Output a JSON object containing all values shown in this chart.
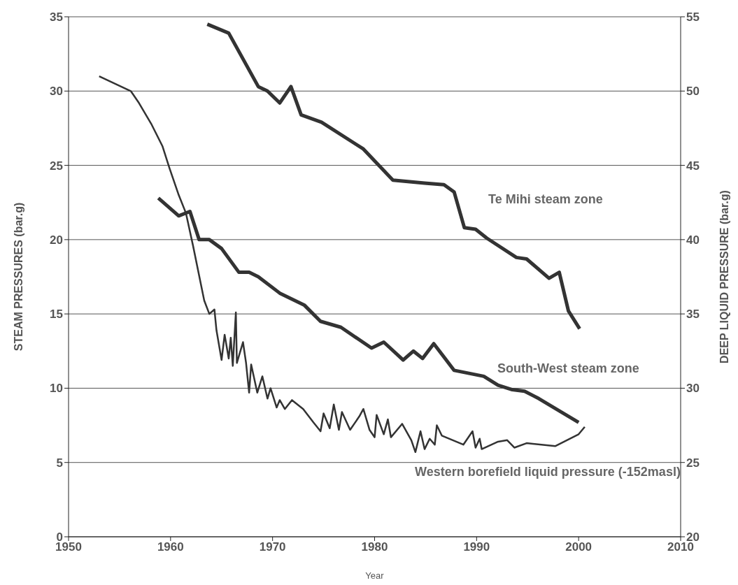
{
  "chart_data": {
    "type": "line",
    "xlabel": "Year",
    "ylabel": "STEAM PRESSURES (bar.g)",
    "y2label": "DEEP LIQUID PRESSURE (bar.g)",
    "xlim": [
      1950,
      2010
    ],
    "xticks": [
      1950,
      1960,
      1970,
      1980,
      1990,
      2000,
      2010
    ],
    "ylim": [
      0,
      35
    ],
    "yticks": [
      0,
      5,
      10,
      15,
      20,
      25,
      30,
      35
    ],
    "y2lim": [
      20,
      55
    ],
    "y2ticks": [
      20,
      25,
      30,
      35,
      40,
      45,
      50,
      55
    ],
    "grid": "y",
    "marker": "none",
    "line_style": "solid",
    "series": [
      {
        "name": "Te Mihi steam zone",
        "color": "#333333",
        "x": [
          1963.6,
          1965.7,
          1968.6,
          1969.5,
          1970.7,
          1971.8,
          1972.8,
          1974.8,
          1978.9,
          1981.8,
          1984.9,
          1986.8,
          1987.8,
          1988.8,
          1989.9,
          1991.0,
          1993.9,
          1994.9,
          1997.1,
          1998.1,
          1999.0,
          2000.1
        ],
        "values": [
          34.5,
          33.9,
          30.3,
          30.0,
          29.2,
          30.3,
          28.4,
          27.9,
          26.1,
          24.0,
          23.8,
          23.7,
          23.2,
          20.8,
          20.7,
          20.1,
          18.8,
          18.7,
          17.4,
          17.8,
          15.2,
          14.0
        ]
      },
      {
        "name": "South-West steam zone",
        "color": "#333333",
        "x": [
          1958.8,
          1960.8,
          1961.9,
          1962.8,
          1963.8,
          1965.0,
          1966.7,
          1967.7,
          1968.6,
          1970.7,
          1973.1,
          1974.7,
          1976.7,
          1979.7,
          1980.9,
          1982.8,
          1983.8,
          1984.7,
          1985.8,
          1987.8,
          1990.7,
          1992.1,
          1993.5,
          1994.7,
          1996.1,
          2000.0
        ],
        "values": [
          22.8,
          21.6,
          21.9,
          20.0,
          20.0,
          19.4,
          17.8,
          17.8,
          17.5,
          16.4,
          15.6,
          14.5,
          14.1,
          12.7,
          13.1,
          11.9,
          12.5,
          12.0,
          13.0,
          11.2,
          10.8,
          10.2,
          9.9,
          9.8,
          9.3,
          7.7
        ]
      },
      {
        "name": "Western borefield liquid pressure (-152masl)",
        "color": "#333333",
        "axis": "y2",
        "x": [
          1953.0,
          1956.1,
          1956.9,
          1958.1,
          1959.2,
          1959.9,
          1960.8,
          1961.5,
          1962.2,
          1963.3,
          1963.8,
          1964.3,
          1964.5,
          1965.0,
          1965.3,
          1965.7,
          1965.9,
          1966.1,
          1966.4,
          1966.5,
          1967.1,
          1967.4,
          1967.7,
          1967.9,
          1968.5,
          1969.0,
          1969.5,
          1969.8,
          1970.4,
          1970.7,
          1971.2,
          1971.9,
          1973.0,
          1974.0,
          1974.7,
          1975.0,
          1975.6,
          1976.0,
          1976.5,
          1976.8,
          1977.6,
          1978.5,
          1978.9,
          1979.5,
          1980.0,
          1980.2,
          1980.9,
          1981.3,
          1981.6,
          1982.7,
          1983.6,
          1984.0,
          1984.5,
          1984.9,
          1985.4,
          1985.9,
          1986.1,
          1986.6,
          1988.7,
          1989.6,
          1989.9,
          1990.3,
          1990.5,
          1992.1,
          1993.0,
          1993.7,
          1994.9,
          1997.7,
          2000.0,
          2000.6
        ],
        "values": [
          51.0,
          50.0,
          49.2,
          47.8,
          46.3,
          44.8,
          43.0,
          41.8,
          39.6,
          35.9,
          35.0,
          35.3,
          33.9,
          31.9,
          33.6,
          32.0,
          33.4,
          31.5,
          35.1,
          31.7,
          33.1,
          31.7,
          29.7,
          31.6,
          29.7,
          30.8,
          29.3,
          30.0,
          28.7,
          29.2,
          28.6,
          29.2,
          28.6,
          27.7,
          27.1,
          28.3,
          27.3,
          28.9,
          27.2,
          28.4,
          27.2,
          28.1,
          28.6,
          27.2,
          26.7,
          28.2,
          26.9,
          27.9,
          26.7,
          27.6,
          26.5,
          25.7,
          27.1,
          25.9,
          26.6,
          26.2,
          27.5,
          26.8,
          26.2,
          27.1,
          26.0,
          26.6,
          25.9,
          26.4,
          26.5,
          26.0,
          26.3,
          26.1,
          26.9,
          27.4
        ]
      }
    ]
  }
}
